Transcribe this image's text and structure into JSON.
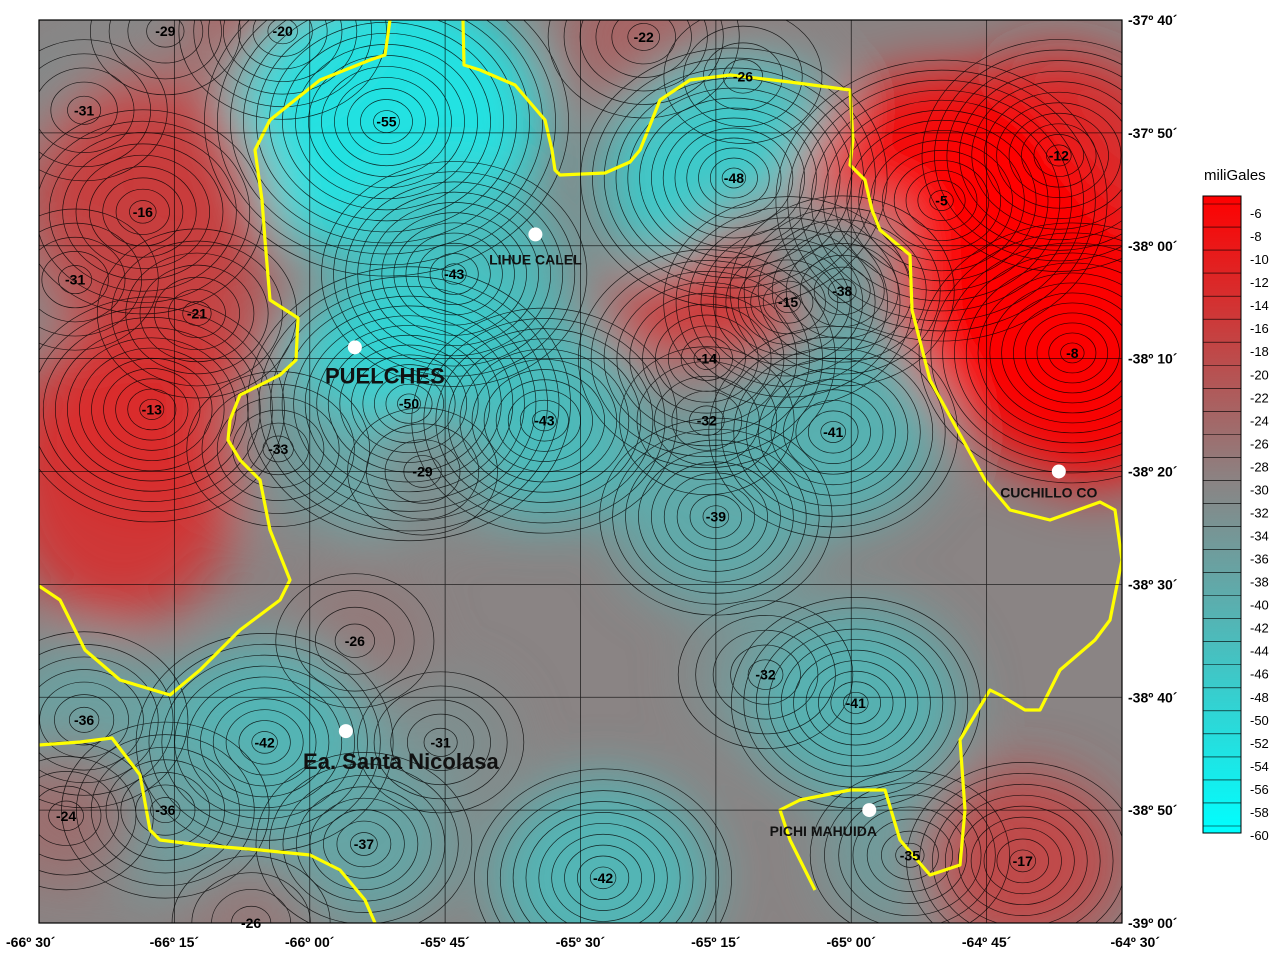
{
  "chart_data": {
    "type": "heatmap",
    "title": "",
    "xlabel": "",
    "ylabel": "",
    "x_ticks": [
      "-66º 30´",
      "-66º 15´",
      "-66º 00´",
      "-65º 45´",
      "-65º 30´",
      "-65º 15´",
      "-65º 00´",
      "-64º 45´",
      "-64º 30´"
    ],
    "y_ticks": [
      "-37º 40´",
      "-37º 50´",
      "-38º 00´",
      "-38º 10´",
      "-38º 20´",
      "-38º 30´",
      "-38º 40´",
      "-38º 50´",
      "-39º 00´"
    ],
    "x_range": [
      -66.5,
      -64.5
    ],
    "y_range": [
      -39.0,
      -37.6667
    ],
    "legend": {
      "title": "miliGales",
      "placement": "right",
      "values": [
        -6,
        -8,
        -10,
        -12,
        -14,
        -16,
        -18,
        -20,
        -22,
        -24,
        -26,
        -28,
        -30,
        -32,
        -34,
        -36,
        -38,
        -40,
        -42,
        -44,
        -46,
        -48,
        -50,
        -52,
        -54,
        -56,
        -58,
        -60
      ]
    },
    "colors": {
      "high": "#ff0000",
      "mid": "#8a8484",
      "low": "#00ffff",
      "contour": "#000000",
      "boundary": "#ffff00",
      "grid": "#000000",
      "site_marker": "#ffffff"
    },
    "places": [
      {
        "name": "LIHUE CALEL",
        "lon": -65.5833,
        "lat": -37.9833
      },
      {
        "name": "PUELCHES",
        "lon": -65.9167,
        "lat": -38.15
      },
      {
        "name": "CUCHILLO CO",
        "lon": -64.6167,
        "lat": -38.3333
      },
      {
        "name": "Ea. Santa Nicolasa",
        "lon": -65.9333,
        "lat": -38.7167
      },
      {
        "name": "PICHI MAHUIDA",
        "lon": -64.9667,
        "lat": -38.8333
      }
    ],
    "annotations": [
      {
        "text": "-29",
        "lon": -66.2667,
        "lat": -37.6833
      },
      {
        "text": "-20",
        "lon": -66.05,
        "lat": -37.6833
      },
      {
        "text": "-22",
        "lon": -65.3833,
        "lat": -37.6917
      },
      {
        "text": "-26",
        "lon": -65.2,
        "lat": -37.75
      },
      {
        "text": "-31",
        "lon": -66.4167,
        "lat": -37.8
      },
      {
        "text": "-55",
        "lon": -65.8583,
        "lat": -37.8167
      },
      {
        "text": "-12",
        "lon": -64.6167,
        "lat": -37.8667
      },
      {
        "text": "-48",
        "lon": -65.2167,
        "lat": -37.9
      },
      {
        "text": "-16",
        "lon": -66.3083,
        "lat": -37.95
      },
      {
        "text": "-5",
        "lon": -64.8333,
        "lat": -37.9333
      },
      {
        "text": "-31",
        "lon": -66.4333,
        "lat": -38.05
      },
      {
        "text": "-43",
        "lon": -65.7333,
        "lat": -38.0417
      },
      {
        "text": "-15",
        "lon": -65.1167,
        "lat": -38.0833
      },
      {
        "text": "-38",
        "lon": -65.0167,
        "lat": -38.0667
      },
      {
        "text": "-21",
        "lon": -66.2083,
        "lat": -38.1
      },
      {
        "text": "-8",
        "lon": -64.5917,
        "lat": -38.1583
      },
      {
        "text": "-14",
        "lon": -65.2667,
        "lat": -38.1667
      },
      {
        "text": "-50",
        "lon": -65.8167,
        "lat": -38.2333
      },
      {
        "text": "-13",
        "lon": -66.2917,
        "lat": -38.2417
      },
      {
        "text": "-43",
        "lon": -65.5667,
        "lat": -38.2583
      },
      {
        "text": "-32",
        "lon": -65.2667,
        "lat": -38.2583
      },
      {
        "text": "-41",
        "lon": -65.0333,
        "lat": -38.275
      },
      {
        "text": "-33",
        "lon": -66.0583,
        "lat": -38.3
      },
      {
        "text": "-29",
        "lon": -65.7917,
        "lat": -38.3333
      },
      {
        "text": "-39",
        "lon": -65.25,
        "lat": -38.4
      },
      {
        "text": "-26",
        "lon": -65.9167,
        "lat": -38.5833
      },
      {
        "text": "-32",
        "lon": -65.1583,
        "lat": -38.6333
      },
      {
        "text": "-41",
        "lon": -64.9917,
        "lat": -38.675
      },
      {
        "text": "-36",
        "lon": -66.4167,
        "lat": -38.7
      },
      {
        "text": "-42",
        "lon": -66.0833,
        "lat": -38.7333
      },
      {
        "text": "-31",
        "lon": -65.7583,
        "lat": -38.7333
      },
      {
        "text": "-36",
        "lon": -66.2667,
        "lat": -38.8333
      },
      {
        "text": "-24",
        "lon": -66.45,
        "lat": -38.8417
      },
      {
        "text": "-37",
        "lon": -65.9,
        "lat": -38.8833
      },
      {
        "text": "-35",
        "lon": -64.8917,
        "lat": -38.9
      },
      {
        "text": "-17",
        "lon": -64.6833,
        "lat": -38.9083
      },
      {
        "text": "-42",
        "lon": -65.4583,
        "lat": -38.9333
      },
      {
        "text": "-26",
        "lon": -66.1083,
        "lat": -39.0
      }
    ]
  }
}
